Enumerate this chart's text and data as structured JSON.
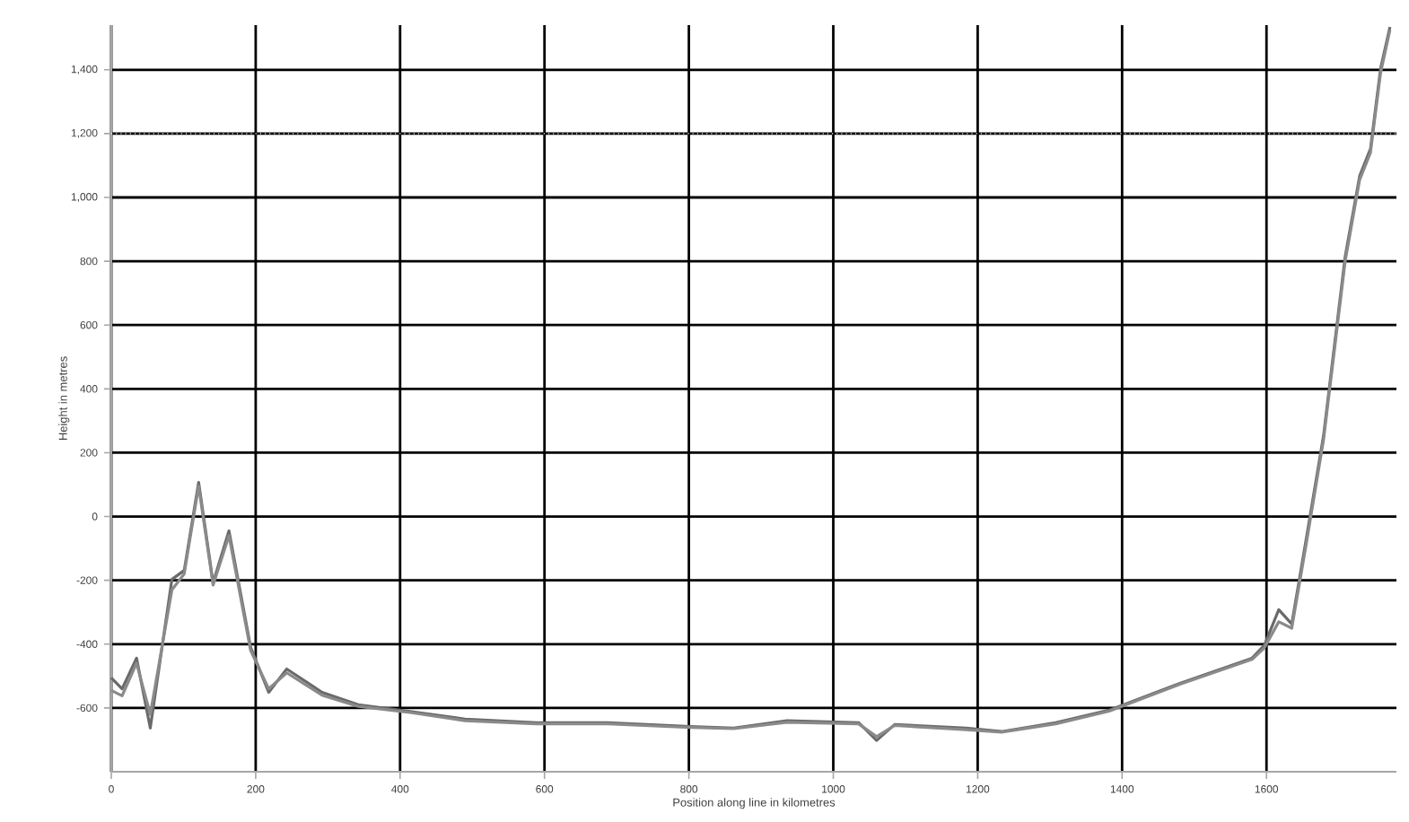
{
  "chart_data": {
    "type": "line",
    "xlabel": "Position along line in kilometres",
    "ylabel": "Height in metres",
    "xlim": [
      0,
      1780
    ],
    "ylim": [
      -800,
      1540
    ],
    "xticks": [
      0,
      200,
      400,
      600,
      800,
      1000,
      1200,
      1400,
      1600
    ],
    "yticks": [
      -600,
      -400,
      -200,
      0,
      200,
      400,
      600,
      800,
      {
        "value": 1000,
        "label": "1,000"
      },
      {
        "value": 1200,
        "label": "1,200"
      },
      {
        "value": 1400,
        "label": "1,400"
      }
    ],
    "grid": true,
    "marker": "none",
    "line_style": "solid",
    "ref_lines": [
      {
        "axis": "y",
        "value": 1200,
        "line_style": "dotted",
        "color": "#ffffff"
      }
    ],
    "series": [
      {
        "color": "#6a6a6a",
        "x": [
          0,
          15,
          35,
          54,
          84,
          101,
          121,
          141,
          163,
          193,
          218,
          243,
          292,
          342,
          416,
          490,
          589,
          688,
          788,
          862,
          936,
          1035,
          1060,
          1085,
          1184,
          1233,
          1308,
          1382,
          1481,
          1580,
          1597,
          1617,
          1635,
          1654,
          1679,
          1709,
          1729,
          1744,
          1758,
          1771
        ],
        "values": [
          -506,
          -540,
          -444,
          -663,
          -197,
          -169,
          107,
          -208,
          -45,
          -410,
          -551,
          -478,
          -551,
          -590,
          -612,
          -635,
          -646,
          -646,
          -657,
          -663,
          -640,
          -646,
          -702,
          -652,
          -663,
          -674,
          -646,
          -607,
          -522,
          -444,
          -404,
          -292,
          -337,
          -84,
          253,
          815,
          1067,
          1152,
          1404,
          1534
        ]
      },
      {
        "color": "#8a8a8a",
        "x": [
          0,
          15,
          35,
          54,
          84,
          101,
          121,
          141,
          163,
          193,
          218,
          243,
          292,
          342,
          416,
          490,
          589,
          688,
          788,
          862,
          936,
          1035,
          1060,
          1085,
          1184,
          1233,
          1308,
          1382,
          1481,
          1580,
          1597,
          1617,
          1635,
          1654,
          1679,
          1709,
          1729,
          1744,
          1758,
          1771
        ],
        "values": [
          -545,
          -562,
          -460,
          -620,
          -230,
          -180,
          95,
          -215,
          -60,
          -420,
          -540,
          -490,
          -560,
          -595,
          -615,
          -640,
          -650,
          -650,
          -660,
          -665,
          -645,
          -650,
          -690,
          -655,
          -668,
          -676,
          -650,
          -610,
          -525,
          -448,
          -412,
          -330,
          -350,
          -100,
          240,
          800,
          1055,
          1140,
          1390,
          1525
        ]
      }
    ]
  }
}
